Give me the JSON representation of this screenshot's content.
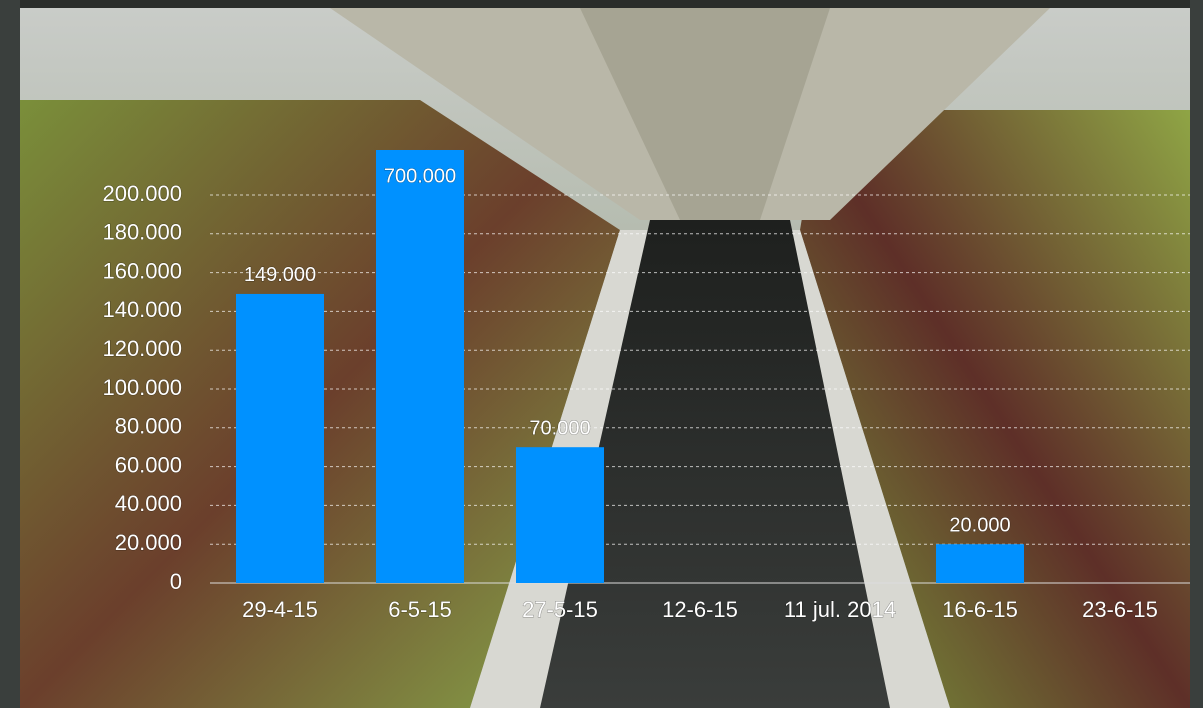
{
  "chart_data": {
    "type": "bar",
    "categories": [
      "29-4-15",
      "6-5-15",
      "27-5-15",
      "12-6-15",
      "11 jul. 2014",
      "16-6-15",
      "23-6-15"
    ],
    "values": [
      149000,
      700000,
      70000,
      null,
      null,
      20000,
      null
    ],
    "value_labels": [
      "149.000",
      "700.000",
      "70.000",
      null,
      null,
      "20.000",
      null
    ],
    "color": "#0091ff",
    "ylim": [
      0,
      200000
    ],
    "yticks": [
      0,
      {
        "value": 20000,
        "label": "20.000"
      },
      {
        "value": 40000,
        "label": "40.000"
      },
      {
        "value": 60000,
        "label": "60.000"
      },
      {
        "value": 80000,
        "label": "80.000"
      },
      {
        "value": 100000,
        "label": "100.000"
      },
      {
        "value": 120000,
        "label": "120.000"
      },
      {
        "value": 140000,
        "label": "140.000"
      },
      {
        "value": 160000,
        "label": "160.000"
      },
      {
        "value": 180000,
        "label": "180.000"
      },
      {
        "value": 200000,
        "label": "200.000"
      }
    ],
    "grid": true
  }
}
